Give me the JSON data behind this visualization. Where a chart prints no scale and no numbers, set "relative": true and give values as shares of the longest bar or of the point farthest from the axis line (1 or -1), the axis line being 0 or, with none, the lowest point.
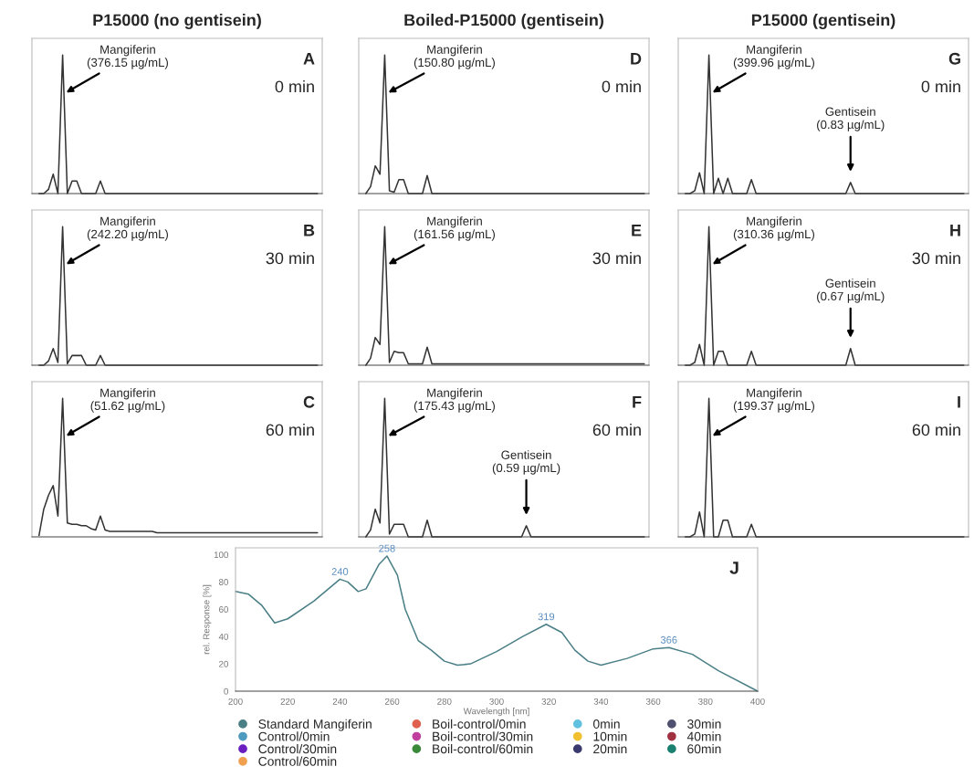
{
  "chart_data": [
    {
      "type": "line",
      "relative": true,
      "title": "P15000 (no gentisein)",
      "annotations": [
        "A",
        "0 min",
        "Mangiferin\n(376.15 µg/mL)"
      ],
      "categories": [
        null,
        null,
        null,
        null,
        null,
        null,
        null,
        null,
        null,
        null,
        null,
        null,
        null,
        null,
        null,
        null,
        null,
        null,
        null,
        null,
        null,
        null,
        null,
        null,
        null,
        null,
        null,
        null,
        null,
        null,
        null,
        null,
        null,
        null,
        null,
        null,
        null,
        null,
        null,
        null,
        null,
        null,
        null,
        null,
        null,
        null,
        null,
        null,
        null,
        null,
        null,
        null,
        null,
        null,
        null,
        null,
        null,
        null,
        null,
        null
      ],
      "series": [
        {
          "color": "#333333",
          "values": [
            0,
            0,
            0.03,
            0.14,
            0,
            1,
            0,
            0.09,
            0.09,
            0,
            0,
            0,
            0,
            0.09,
            0,
            0,
            0,
            0,
            0,
            0,
            0,
            0,
            0,
            0,
            0,
            0,
            0,
            0,
            0,
            0,
            0,
            0,
            0,
            0,
            0,
            0,
            0,
            0,
            0,
            0,
            0,
            0,
            0,
            0,
            0,
            0,
            0,
            0,
            0,
            0,
            0,
            0,
            0,
            0,
            0,
            0,
            0,
            0,
            0,
            0
          ]
        }
      ]
    },
    {
      "type": "line",
      "relative": true,
      "title": "Boiled-P15000 (gentisein)",
      "annotations": [
        "D",
        "0 min",
        "Mangiferin\n(150.80 µg/mL)"
      ],
      "categories": [
        null,
        null,
        null,
        null,
        null,
        null,
        null,
        null,
        null,
        null,
        null,
        null,
        null,
        null,
        null,
        null,
        null,
        null,
        null,
        null,
        null,
        null,
        null,
        null,
        null,
        null,
        null,
        null,
        null,
        null,
        null,
        null,
        null,
        null,
        null,
        null,
        null,
        null,
        null,
        null,
        null,
        null,
        null,
        null,
        null,
        null,
        null,
        null,
        null,
        null,
        null,
        null,
        null,
        null,
        null,
        null,
        null,
        null,
        null,
        null
      ],
      "series": [
        {
          "color": "#333333",
          "values": [
            0,
            0.05,
            0.2,
            0.14,
            1,
            0.02,
            0.01,
            0.1,
            0.1,
            0,
            0,
            0,
            0,
            0.13,
            0,
            0,
            0,
            0,
            0,
            0,
            0,
            0,
            0,
            0,
            0,
            0,
            0,
            0,
            0,
            0,
            0,
            0,
            0,
            0,
            0,
            0,
            0,
            0,
            0,
            0,
            0,
            0,
            0,
            0,
            0,
            0,
            0,
            0,
            0,
            0,
            0,
            0,
            0,
            0,
            0,
            0,
            0,
            0,
            0,
            0
          ]
        }
      ]
    },
    {
      "type": "line",
      "relative": true,
      "title": "P15000 (gentisein)",
      "annotations": [
        "G",
        "0 min",
        "Mangiferin\n(399.96 µg/mL)",
        "Gentisein\n(0.83 µg/mL)"
      ],
      "categories": [
        null,
        null,
        null,
        null,
        null,
        null,
        null,
        null,
        null,
        null,
        null,
        null,
        null,
        null,
        null,
        null,
        null,
        null,
        null,
        null,
        null,
        null,
        null,
        null,
        null,
        null,
        null,
        null,
        null,
        null,
        null,
        null,
        null,
        null,
        null,
        null,
        null,
        null,
        null,
        null,
        null,
        null,
        null,
        null,
        null,
        null,
        null,
        null,
        null,
        null,
        null,
        null,
        null,
        null,
        null,
        null,
        null,
        null,
        null,
        null
      ],
      "series": [
        {
          "color": "#333333",
          "values": [
            0,
            0,
            0.02,
            0.15,
            0,
            1,
            0,
            0.11,
            0,
            0.11,
            0,
            0,
            0,
            0,
            0.1,
            0,
            0,
            0,
            0,
            0,
            0,
            0,
            0,
            0,
            0,
            0,
            0,
            0,
            0,
            0,
            0,
            0,
            0,
            0,
            0,
            0.08,
            0,
            0,
            0,
            0,
            0,
            0,
            0,
            0,
            0,
            0,
            0,
            0,
            0,
            0,
            0,
            0,
            0,
            0,
            0,
            0,
            0,
            0,
            0,
            0
          ]
        }
      ]
    },
    {
      "type": "line",
      "relative": true,
      "annotations": [
        "B",
        "30 min",
        "Mangiferin\n(242.20 µg/mL)"
      ],
      "categories": [
        null,
        null,
        null,
        null,
        null,
        null,
        null,
        null,
        null,
        null,
        null,
        null,
        null,
        null,
        null,
        null,
        null,
        null,
        null,
        null,
        null,
        null,
        null,
        null,
        null,
        null,
        null,
        null,
        null,
        null,
        null,
        null,
        null,
        null,
        null,
        null,
        null,
        null,
        null,
        null,
        null,
        null,
        null,
        null,
        null,
        null,
        null,
        null,
        null,
        null,
        null,
        null,
        null,
        null,
        null,
        null,
        null,
        null,
        null,
        null
      ],
      "series": [
        {
          "color": "#333333",
          "values": [
            0,
            0,
            0.03,
            0.12,
            0.02,
            1,
            0.01,
            0.07,
            0.07,
            0.07,
            0,
            0,
            0,
            0.07,
            0,
            0,
            0,
            0,
            0,
            0,
            0,
            0,
            0,
            0,
            0,
            0,
            0,
            0,
            0,
            0,
            0,
            0,
            0,
            0,
            0,
            0,
            0,
            0,
            0,
            0,
            0,
            0,
            0,
            0,
            0,
            0,
            0,
            0,
            0,
            0,
            0,
            0,
            0,
            0,
            0,
            0,
            0,
            0,
            0,
            0
          ]
        }
      ]
    },
    {
      "type": "line",
      "relative": true,
      "annotations": [
        "E",
        "30 min",
        "Mangiferin\n(161.56 µg/mL)"
      ],
      "categories": [
        null,
        null,
        null,
        null,
        null,
        null,
        null,
        null,
        null,
        null,
        null,
        null,
        null,
        null,
        null,
        null,
        null,
        null,
        null,
        null,
        null,
        null,
        null,
        null,
        null,
        null,
        null,
        null,
        null,
        null,
        null,
        null,
        null,
        null,
        null,
        null,
        null,
        null,
        null,
        null,
        null,
        null,
        null,
        null,
        null,
        null,
        null,
        null,
        null,
        null,
        null,
        null,
        null,
        null,
        null,
        null,
        null,
        null,
        null,
        null
      ],
      "series": [
        {
          "color": "#333333",
          "values": [
            0,
            0.05,
            0.2,
            0.15,
            1,
            0.02,
            0.1,
            0.09,
            0.09,
            0.01,
            0.01,
            0.01,
            0.01,
            0.13,
            0.01,
            0.01,
            0.01,
            0.01,
            0.01,
            0.01,
            0.01,
            0.01,
            0.01,
            0.01,
            0.01,
            0.01,
            0.01,
            0.01,
            0.01,
            0.01,
            0.01,
            0.01,
            0.01,
            0.01,
            0.01,
            0.01,
            0.01,
            0.01,
            0.01,
            0.01,
            0.01,
            0.01,
            0.01,
            0.01,
            0.01,
            0.01,
            0.01,
            0.01,
            0.01,
            0.01,
            0.01,
            0.01,
            0.01,
            0.01,
            0.01,
            0.01,
            0.01,
            0.01,
            0.01,
            0.01
          ]
        }
      ]
    },
    {
      "type": "line",
      "relative": true,
      "annotations": [
        "H",
        "30 min",
        "Mangiferin\n(310.36 µg/mL)",
        "Gentisein\n(0.67 µg/mL)"
      ],
      "categories": [
        null,
        null,
        null,
        null,
        null,
        null,
        null,
        null,
        null,
        null,
        null,
        null,
        null,
        null,
        null,
        null,
        null,
        null,
        null,
        null,
        null,
        null,
        null,
        null,
        null,
        null,
        null,
        null,
        null,
        null,
        null,
        null,
        null,
        null,
        null,
        null,
        null,
        null,
        null,
        null,
        null,
        null,
        null,
        null,
        null,
        null,
        null,
        null,
        null,
        null,
        null,
        null,
        null,
        null,
        null,
        null,
        null,
        null,
        null,
        null
      ],
      "series": [
        {
          "color": "#333333",
          "values": [
            0,
            0,
            0.02,
            0.15,
            0,
            1,
            0,
            0.1,
            0.1,
            0,
            0,
            0,
            0,
            0,
            0.1,
            0,
            0,
            0,
            0,
            0,
            0,
            0,
            0,
            0,
            0,
            0,
            0,
            0,
            0,
            0,
            0,
            0,
            0,
            0,
            0,
            0.12,
            0,
            0,
            0,
            0,
            0,
            0,
            0,
            0,
            0,
            0,
            0,
            0,
            0,
            0,
            0,
            0,
            0,
            0,
            0,
            0,
            0,
            0,
            0,
            0
          ]
        }
      ]
    },
    {
      "type": "line",
      "relative": true,
      "annotations": [
        "C",
        "60 min",
        "Mangiferin\n(51.62 µg/mL)"
      ],
      "categories": [
        null,
        null,
        null,
        null,
        null,
        null,
        null,
        null,
        null,
        null,
        null,
        null,
        null,
        null,
        null,
        null,
        null,
        null,
        null,
        null,
        null,
        null,
        null,
        null,
        null,
        null,
        null,
        null,
        null,
        null,
        null,
        null,
        null,
        null,
        null,
        null,
        null,
        null,
        null,
        null,
        null,
        null,
        null,
        null,
        null,
        null,
        null,
        null,
        null,
        null,
        null,
        null,
        null,
        null,
        null,
        null,
        null,
        null,
        null,
        null
      ],
      "series": [
        {
          "color": "#333333",
          "values": [
            0.01,
            0.2,
            0.3,
            0.37,
            0.15,
            1,
            0.1,
            0.09,
            0.09,
            0.08,
            0.08,
            0.06,
            0.05,
            0.15,
            0.05,
            0.04,
            0.04,
            0.04,
            0.04,
            0.04,
            0.04,
            0.04,
            0.04,
            0.04,
            0.04,
            0.03,
            0.03,
            0.03,
            0.03,
            0.03,
            0.03,
            0.03,
            0.03,
            0.03,
            0.03,
            0.03,
            0.03,
            0.03,
            0.03,
            0.03,
            0.03,
            0.03,
            0.03,
            0.03,
            0.03,
            0.03,
            0.03,
            0.03,
            0.03,
            0.03,
            0.03,
            0.03,
            0.03,
            0.03,
            0.03,
            0.03,
            0.03,
            0.03,
            0.03,
            0.03
          ]
        }
      ]
    },
    {
      "type": "line",
      "relative": true,
      "annotations": [
        "F",
        "60 min",
        "Mangiferin\n(175.43 µg/mL)",
        "Gentisein\n(0.59 µg/mL)"
      ],
      "categories": [
        null,
        null,
        null,
        null,
        null,
        null,
        null,
        null,
        null,
        null,
        null,
        null,
        null,
        null,
        null,
        null,
        null,
        null,
        null,
        null,
        null,
        null,
        null,
        null,
        null,
        null,
        null,
        null,
        null,
        null,
        null,
        null,
        null,
        null,
        null,
        null,
        null,
        null,
        null,
        null,
        null,
        null,
        null,
        null,
        null,
        null,
        null,
        null,
        null,
        null,
        null,
        null,
        null,
        null,
        null,
        null,
        null,
        null,
        null,
        null
      ],
      "series": [
        {
          "color": "#333333",
          "values": [
            0,
            0.05,
            0.2,
            0.1,
            1,
            0.02,
            0.09,
            0.09,
            0.09,
            0,
            0,
            0,
            0,
            0.12,
            0,
            0,
            0,
            0,
            0,
            0,
            0,
            0,
            0,
            0,
            0,
            0,
            0,
            0,
            0,
            0,
            0,
            0,
            0,
            0,
            0.08,
            0,
            0,
            0,
            0,
            0,
            0,
            0,
            0,
            0,
            0,
            0,
            0,
            0,
            0,
            0,
            0,
            0,
            0,
            0,
            0,
            0,
            0,
            0,
            0,
            0
          ]
        }
      ]
    },
    {
      "type": "line",
      "relative": true,
      "annotations": [
        "I",
        "60 min",
        "Mangiferin\n(199.37 µg/mL)"
      ],
      "categories": [
        null,
        null,
        null,
        null,
        null,
        null,
        null,
        null,
        null,
        null,
        null,
        null,
        null,
        null,
        null,
        null,
        null,
        null,
        null,
        null,
        null,
        null,
        null,
        null,
        null,
        null,
        null,
        null,
        null,
        null,
        null,
        null,
        null,
        null,
        null,
        null,
        null,
        null,
        null,
        null,
        null,
        null,
        null,
        null,
        null,
        null,
        null,
        null,
        null,
        null,
        null,
        null,
        null,
        null,
        null,
        null,
        null,
        null,
        null,
        null
      ],
      "series": [
        {
          "color": "#333333",
          "values": [
            0,
            0,
            0.02,
            0.18,
            0,
            1,
            0,
            0,
            0.12,
            0.12,
            0,
            0,
            0,
            0,
            0.09,
            0,
            0,
            0,
            0,
            0,
            0,
            0,
            0,
            0,
            0,
            0,
            0,
            0,
            0,
            0,
            0,
            0,
            0,
            0,
            0,
            0,
            0,
            0,
            0,
            0,
            0,
            0,
            0,
            0,
            0,
            0,
            0,
            0,
            0,
            0,
            0,
            0,
            0,
            0,
            0,
            0,
            0,
            0,
            0,
            0
          ]
        }
      ]
    },
    {
      "type": "line",
      "xlabel": "Wavelength [nm]",
      "ylabel": "rel. Response [%]",
      "xlim": [
        200,
        400
      ],
      "ylim": [
        0,
        105
      ],
      "xticks": [
        200,
        220,
        240,
        260,
        280,
        300,
        320,
        340,
        360,
        380,
        400
      ],
      "yticks": [
        0,
        20,
        40,
        60,
        80,
        100
      ],
      "legend": "bottom",
      "annotations": [
        "J",
        {
          "text": "240",
          "x": 240,
          "y": 82
        },
        {
          "text": "258",
          "x": 258,
          "y": 99
        },
        {
          "text": "319",
          "x": 319,
          "y": 49
        },
        {
          "text": "366",
          "x": 366,
          "y": 32
        }
      ],
      "x": [
        200,
        205,
        210,
        215,
        220,
        230,
        240,
        243,
        247,
        250,
        255,
        258,
        262,
        265,
        270,
        275,
        280,
        285,
        290,
        300,
        310,
        319,
        325,
        330,
        335,
        340,
        350,
        360,
        366,
        375,
        385,
        400
      ],
      "series": [
        {
          "name": "Standard Mangiferin",
          "color": "#4a7f86",
          "values": [
            73,
            71,
            63,
            50,
            53,
            66,
            82,
            80,
            73,
            75,
            93,
            99,
            85,
            60,
            37,
            30,
            22,
            19,
            20,
            29,
            40,
            49,
            43,
            30,
            22,
            19,
            24,
            31,
            32,
            27,
            15,
            0
          ]
        },
        {
          "name": "Control/0min",
          "color": "#4f9bc0",
          "values": [
            null,
            null,
            null,
            null,
            null,
            null,
            null,
            null,
            null,
            null,
            null,
            null,
            null,
            null,
            null,
            null,
            null,
            null,
            null,
            null,
            null,
            null,
            null,
            null,
            null,
            null,
            null,
            null,
            null,
            null,
            null,
            null
          ]
        },
        {
          "name": "Control/30min",
          "color": "#6a1fc0",
          "values": [
            null,
            null,
            null,
            null,
            null,
            null,
            null,
            null,
            null,
            null,
            null,
            null,
            null,
            null,
            null,
            null,
            null,
            null,
            null,
            null,
            null,
            null,
            null,
            null,
            null,
            null,
            null,
            null,
            null,
            null,
            null,
            null
          ]
        },
        {
          "name": "Control/60min",
          "color": "#f0a050",
          "values": [
            null,
            null,
            null,
            null,
            null,
            null,
            null,
            null,
            null,
            null,
            null,
            null,
            null,
            null,
            null,
            null,
            null,
            null,
            null,
            null,
            null,
            null,
            null,
            null,
            null,
            null,
            null,
            null,
            null,
            null,
            null,
            null
          ]
        },
        {
          "name": "Boil-control/0min",
          "color": "#e06050",
          "values": [
            null,
            null,
            null,
            null,
            null,
            null,
            null,
            null,
            null,
            null,
            null,
            null,
            null,
            null,
            null,
            null,
            null,
            null,
            null,
            null,
            null,
            null,
            null,
            null,
            null,
            null,
            null,
            null,
            null,
            null,
            null,
            null
          ]
        },
        {
          "name": "Boil-control/30min",
          "color": "#c040a0",
          "values": [
            null,
            null,
            null,
            null,
            null,
            null,
            null,
            null,
            null,
            null,
            null,
            null,
            null,
            null,
            null,
            null,
            null,
            null,
            null,
            null,
            null,
            null,
            null,
            null,
            null,
            null,
            null,
            null,
            null,
            null,
            null,
            null
          ]
        },
        {
          "name": "Boil-control/60min",
          "color": "#3a8a3a",
          "values": [
            null,
            null,
            null,
            null,
            null,
            null,
            null,
            null,
            null,
            null,
            null,
            null,
            null,
            null,
            null,
            null,
            null,
            null,
            null,
            null,
            null,
            null,
            null,
            null,
            null,
            null,
            null,
            null,
            null,
            null,
            null,
            null
          ]
        },
        {
          "name": "0min",
          "color": "#60c0e0",
          "values": [
            null,
            null,
            null,
            null,
            null,
            null,
            null,
            null,
            null,
            null,
            null,
            null,
            null,
            null,
            null,
            null,
            null,
            null,
            null,
            null,
            null,
            null,
            null,
            null,
            null,
            null,
            null,
            null,
            null,
            null,
            null,
            null
          ]
        },
        {
          "name": "10min",
          "color": "#f0c030",
          "values": [
            null,
            null,
            null,
            null,
            null,
            null,
            null,
            null,
            null,
            null,
            null,
            null,
            null,
            null,
            null,
            null,
            null,
            null,
            null,
            null,
            null,
            null,
            null,
            null,
            null,
            null,
            null,
            null,
            null,
            null,
            null,
            null
          ]
        },
        {
          "name": "20min",
          "color": "#3a3a70",
          "values": [
            null,
            null,
            null,
            null,
            null,
            null,
            null,
            null,
            null,
            null,
            null,
            null,
            null,
            null,
            null,
            null,
            null,
            null,
            null,
            null,
            null,
            null,
            null,
            null,
            null,
            null,
            null,
            null,
            null,
            null,
            null,
            null
          ]
        },
        {
          "name": "30min",
          "color": "#505070",
          "values": [
            null,
            null,
            null,
            null,
            null,
            null,
            null,
            null,
            null,
            null,
            null,
            null,
            null,
            null,
            null,
            null,
            null,
            null,
            null,
            null,
            null,
            null,
            null,
            null,
            null,
            null,
            null,
            null,
            null,
            null,
            null,
            null
          ]
        },
        {
          "name": "40min",
          "color": "#a03040",
          "values": [
            null,
            null,
            null,
            null,
            null,
            null,
            null,
            null,
            null,
            null,
            null,
            null,
            null,
            null,
            null,
            null,
            null,
            null,
            null,
            null,
            null,
            null,
            null,
            null,
            null,
            null,
            null,
            null,
            null,
            null,
            null,
            null
          ]
        },
        {
          "name": "60min",
          "color": "#1a8070",
          "values": [
            null,
            null,
            null,
            null,
            null,
            null,
            null,
            null,
            null,
            null,
            null,
            null,
            null,
            null,
            null,
            null,
            null,
            null,
            null,
            null,
            null,
            null,
            null,
            null,
            null,
            null,
            null,
            null,
            null,
            null,
            null,
            null
          ]
        }
      ]
    }
  ]
}
